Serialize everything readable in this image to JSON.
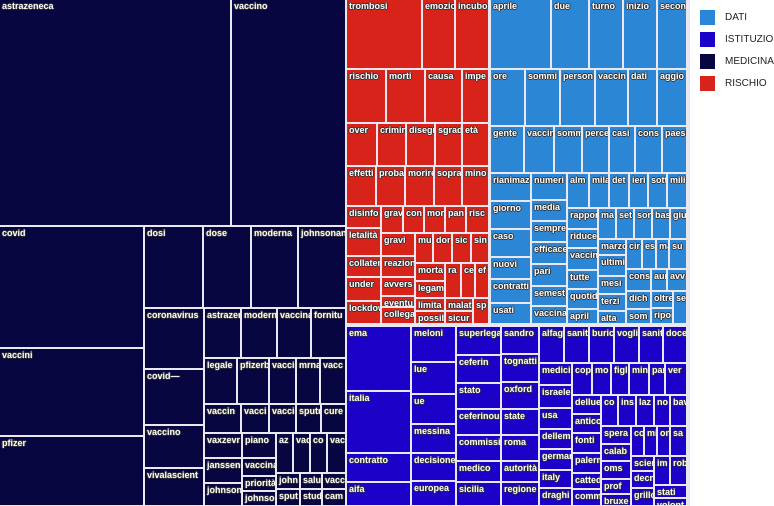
{
  "chart_data": {
    "type": "treemap",
    "legend_position": "top-right",
    "groups": [
      {
        "name": "MEDICINA",
        "color": "#080640",
        "labels": [
          "astrazeneca",
          "vaccino",
          "covid",
          "vaccini",
          "pfizer",
          "dosi",
          "dose",
          "moderna",
          "johnsonan",
          "coronavirus",
          "covid—",
          "vaccino",
          "vivalascient",
          "astrazen",
          "modern",
          "vaccina",
          "fornitu",
          "legale",
          "pfizerb",
          "vacci",
          "mrna",
          "vacc",
          "vaccin",
          "vacci",
          "vacci",
          "sputn",
          "cure",
          "vaxzevr",
          "janssen",
          "johnson",
          "piano",
          "vaccina",
          "priorità",
          "johnso",
          "az",
          "vac",
          "co",
          "vac",
          "john",
          "salu",
          "vacc",
          "sput",
          "stud",
          "cam"
        ]
      },
      {
        "name": "RISCHIO",
        "color": "#d8231a",
        "labels": [
          "trombosi",
          "emozio",
          "incubo",
          "rischio",
          "morti",
          "causa",
          "impe",
          "over",
          "crimin",
          "disegn",
          "sgrad",
          "età",
          "effetti",
          "proba",
          "morire",
          "sopra",
          "mino",
          "disinfo",
          "letalità",
          "collater",
          "under",
          "lockdow",
          "grav",
          "con",
          "mor",
          "pan",
          "risc",
          "gravi",
          "reazion",
          "avvers",
          "eventu",
          "collega",
          "mu",
          "dor",
          "sic",
          "sin",
          "morta",
          "legam",
          "limita",
          "possib",
          "ra",
          "ce",
          "ef",
          "malat",
          "sicur",
          "sp"
        ]
      },
      {
        "name": "DATI",
        "color": "#2b87d6",
        "labels": [
          "aprile",
          "due",
          "turno",
          "inizio",
          "secon",
          "ore",
          "sommi",
          "person",
          "vaccin",
          "dati",
          "aggio",
          "gente",
          "vaccin",
          "somm",
          "perce",
          "casi",
          "cons",
          "paesi",
          "rianimaz",
          "giorno",
          "caso",
          "nuovi",
          "contratti",
          "usati",
          "numeri",
          "media",
          "sempre",
          "efficace",
          "pari",
          "semest",
          "vaccina",
          "alm",
          "mila",
          "det",
          "ieri",
          "sott",
          "mili",
          "rappor",
          "riduce",
          "vaccin",
          "tutte",
          "quotid",
          "april",
          "ma",
          "set",
          "sor",
          "bas",
          "giu",
          "marzo",
          "ultimi",
          "mesi",
          "terzi",
          "alta",
          "cir",
          "es",
          "ma",
          "su",
          "cons",
          "dich",
          "som",
          "aur",
          "avv",
          "oltre",
          "ripor",
          "se"
        ]
      },
      {
        "name": "ISTITUZIONI",
        "color": "#1c02c8",
        "labels": [
          "ema",
          "italia",
          "contratto",
          "aifa",
          "meloni",
          "lue",
          "ue",
          "messina",
          "decisione",
          "europea",
          "superlega",
          "ceferin",
          "stato",
          "ceferinou",
          "commissi",
          "medico",
          "sicilia",
          "sandro",
          "tognatti",
          "oxford",
          "state",
          "roma",
          "autorità",
          "regione",
          "alfag",
          "sanit",
          "buric",
          "vogli",
          "sanit",
          "doce",
          "medici",
          "israele",
          "usa",
          "dellem",
          "germar",
          "italy",
          "draghi",
          "cop",
          "mo",
          "figl",
          "min",
          "par",
          "ver",
          "dellue",
          "antico",
          "fonti",
          "palerm",
          "catted",
          "comm",
          "co",
          "ins",
          "laz",
          "no",
          "bav",
          "spera",
          "calab",
          "oms",
          "prof",
          "bruxe",
          "co",
          "mi",
          "on",
          "sa",
          "scien",
          "decr",
          "grillo",
          "im",
          "rob",
          "stati",
          "volont"
        ]
      }
    ],
    "legend": [
      {
        "label": "DATI",
        "color": "#2b87d6"
      },
      {
        "label": "ISTITUZIONI",
        "color": "#1c02c8"
      },
      {
        "label": "MEDICINA",
        "color": "#080640"
      },
      {
        "label": "RISCHIO",
        "color": "#d8231a"
      }
    ]
  }
}
